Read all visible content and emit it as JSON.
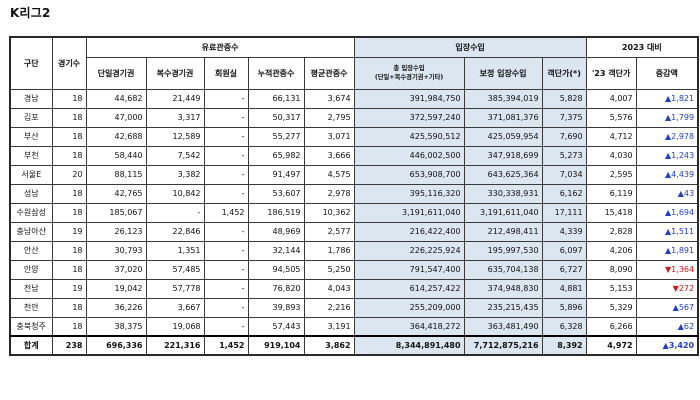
{
  "title": "K리그2",
  "headers": {
    "team": "구단",
    "games": "경기수",
    "paid_group": "유료관중수",
    "revenue_group": "입장수입",
    "year_group": "2023 대비",
    "single_ticket": "단일경기권",
    "multi_ticket": "복수경기권",
    "membership": "회원실",
    "cumulative": "누적관중수",
    "average": "평균관중수",
    "total_revenue_line1": "총 입장수입",
    "total_revenue_line2": "(단일+복수경기권+기타)",
    "box_revenue": "보정 입장수입",
    "per_customer": "객단가(*)",
    "prev_per_customer": "'23 객단가",
    "change": "증감액"
  },
  "rows": [
    {
      "team": "경남",
      "games": "18",
      "single": "44,682",
      "multi": "21,449",
      "member": "-",
      "cumulative": "66,131",
      "average": "3,674",
      "total_rev": "391,984,750",
      "box_rev": "385,394,019",
      "per": "5,828",
      "prev": "4,007",
      "change": "▲1,821",
      "dir": "up"
    },
    {
      "team": "김포",
      "games": "18",
      "single": "47,000",
      "multi": "3,317",
      "member": "-",
      "cumulative": "50,317",
      "average": "2,795",
      "total_rev": "372,597,240",
      "box_rev": "371,081,376",
      "per": "7,375",
      "prev": "5,576",
      "change": "▲1,799",
      "dir": "up"
    },
    {
      "team": "부산",
      "games": "18",
      "single": "42,688",
      "multi": "12,589",
      "member": "-",
      "cumulative": "55,277",
      "average": "3,071",
      "total_rev": "425,590,512",
      "box_rev": "425,059,954",
      "per": "7,690",
      "prev": "4,712",
      "change": "▲2,978",
      "dir": "up"
    },
    {
      "team": "부천",
      "games": "18",
      "single": "58,440",
      "multi": "7,542",
      "member": "-",
      "cumulative": "65,982",
      "average": "3,666",
      "total_rev": "446,002,500",
      "box_rev": "347,918,699",
      "per": "5,273",
      "prev": "4,030",
      "change": "▲1,243",
      "dir": "up"
    },
    {
      "team": "서울E",
      "games": "20",
      "single": "88,115",
      "multi": "3,382",
      "member": "-",
      "cumulative": "91,497",
      "average": "4,575",
      "total_rev": "653,908,700",
      "box_rev": "643,625,364",
      "per": "7,034",
      "prev": "2,595",
      "change": "▲4,439",
      "dir": "up"
    },
    {
      "team": "성남",
      "games": "18",
      "single": "42,765",
      "multi": "10,842",
      "member": "-",
      "cumulative": "53,607",
      "average": "2,978",
      "total_rev": "395,116,320",
      "box_rev": "330,338,931",
      "per": "6,162",
      "prev": "6,119",
      "change": "▲43",
      "dir": "up"
    },
    {
      "team": "수원삼성",
      "games": "18",
      "single": "185,067",
      "multi": "-",
      "member": "1,452",
      "cumulative": "186,519",
      "average": "10,362",
      "total_rev": "3,191,611,040",
      "box_rev": "3,191,611,040",
      "per": "17,111",
      "prev": "15,418",
      "change": "▲1,694",
      "dir": "up"
    },
    {
      "team": "충남아산",
      "games": "19",
      "single": "26,123",
      "multi": "22,846",
      "member": "-",
      "cumulative": "48,969",
      "average": "2,577",
      "total_rev": "216,422,400",
      "box_rev": "212,498,411",
      "per": "4,339",
      "prev": "2,828",
      "change": "▲1,511",
      "dir": "up"
    },
    {
      "team": "안산",
      "games": "18",
      "single": "30,793",
      "multi": "1,351",
      "member": "-",
      "cumulative": "32,144",
      "average": "1,786",
      "total_rev": "226,225,924",
      "box_rev": "195,997,530",
      "per": "6,097",
      "prev": "4,206",
      "change": "▲1,891",
      "dir": "up"
    },
    {
      "team": "안양",
      "games": "18",
      "single": "37,020",
      "multi": "57,485",
      "member": "-",
      "cumulative": "94,505",
      "average": "5,250",
      "total_rev": "791,547,400",
      "box_rev": "635,704,138",
      "per": "6,727",
      "prev": "8,090",
      "change": "▼1,364",
      "dir": "down"
    },
    {
      "team": "전남",
      "games": "19",
      "single": "19,042",
      "multi": "57,778",
      "member": "-",
      "cumulative": "76,820",
      "average": "4,043",
      "total_rev": "614,257,422",
      "box_rev": "374,948,830",
      "per": "4,881",
      "prev": "5,153",
      "change": "▼272",
      "dir": "down"
    },
    {
      "team": "천안",
      "games": "18",
      "single": "36,226",
      "multi": "3,667",
      "member": "-",
      "cumulative": "39,893",
      "average": "2,216",
      "total_rev": "255,209,000",
      "box_rev": "235,215,435",
      "per": "5,896",
      "prev": "5,329",
      "change": "▲567",
      "dir": "up"
    },
    {
      "team": "충북청주",
      "games": "18",
      "single": "38,375",
      "multi": "19,068",
      "member": "-",
      "cumulative": "57,443",
      "average": "3,191",
      "total_rev": "364,418,272",
      "box_rev": "363,481,490",
      "per": "6,328",
      "prev": "6,266",
      "change": "▲62",
      "dir": "up"
    }
  ],
  "total": {
    "team": "합계",
    "games": "238",
    "single": "696,336",
    "multi": "221,316",
    "member": "1,452",
    "cumulative": "919,104",
    "average": "3,862",
    "total_rev": "8,344,891,480",
    "box_rev": "7,712,875,216",
    "per": "8,392",
    "prev": "4,972",
    "change": "▲3,420",
    "dir": "up"
  },
  "colors": {
    "shade": "#dce6f1",
    "up": "#1f3fc4",
    "down": "#d01818"
  }
}
